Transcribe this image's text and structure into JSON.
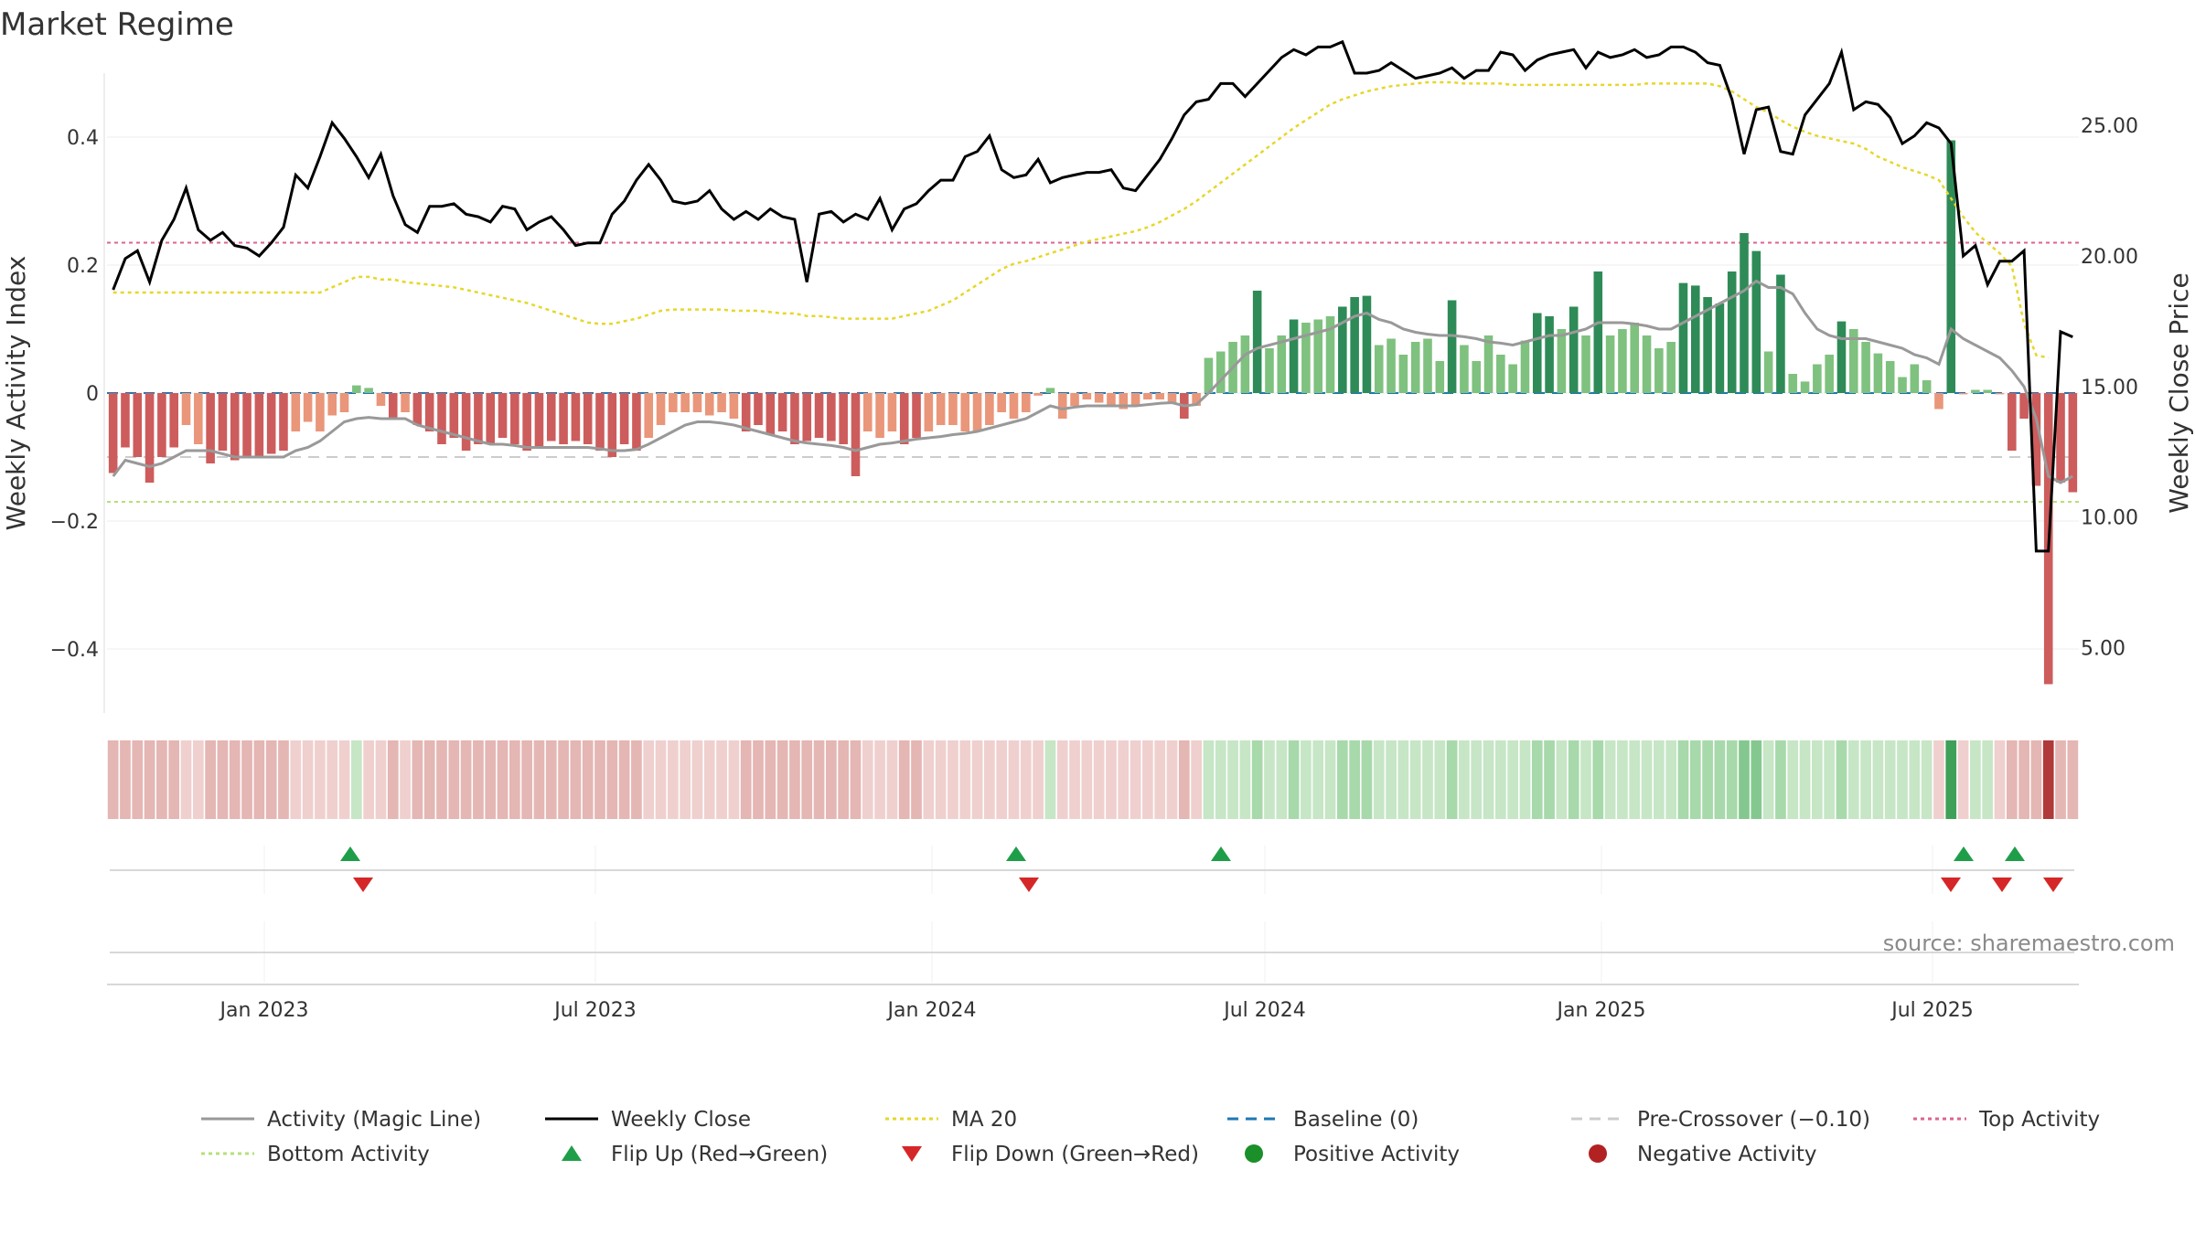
{
  "chart_data": {
    "type": "bar",
    "title": "Market Regime",
    "source": "source: sharemaestro.com",
    "x_range": [
      "2022-10-07",
      "2025-09-19"
    ],
    "x_ticks": [
      "Jan 2023",
      "Jul 2023",
      "Jan 2024",
      "Jul 2024",
      "Jan 2025",
      "Jul 2025"
    ],
    "x_tick_dates": [
      "2023-01-01",
      "2023-07-01",
      "2024-01-01",
      "2024-07-01",
      "2025-01-01",
      "2025-07-01"
    ],
    "y_left": {
      "label": "Weekly Activity Index",
      "range": [
        -0.5,
        0.5
      ],
      "ticks": [
        "0.4",
        "0.2",
        "0",
        "−0.2",
        "−0.4"
      ],
      "tick_values": [
        0.4,
        0.2,
        0,
        -0.2,
        -0.4
      ]
    },
    "y_right": {
      "label": "Weekly Close Price",
      "range": [
        2.5,
        27.0
      ],
      "ticks": [
        "25.00",
        "20.00",
        "15.00",
        "10.00",
        "5.00"
      ],
      "tick_values": [
        25,
        20,
        15,
        10,
        5
      ]
    },
    "reference_lines": {
      "baseline": 0,
      "pre_crossover": -0.1,
      "top_activity": 0.235,
      "bottom_activity": -0.17
    },
    "activity": [
      -0.125,
      -0.085,
      -0.1,
      -0.14,
      -0.1,
      -0.085,
      -0.05,
      -0.08,
      -0.11,
      -0.09,
      -0.105,
      -0.1,
      -0.1,
      -0.095,
      -0.09,
      -0.06,
      -0.045,
      -0.06,
      -0.035,
      -0.03,
      0.012,
      0.008,
      -0.02,
      -0.04,
      -0.03,
      -0.05,
      -0.06,
      -0.08,
      -0.07,
      -0.09,
      -0.08,
      -0.08,
      -0.07,
      -0.08,
      -0.09,
      -0.085,
      -0.075,
      -0.08,
      -0.075,
      -0.08,
      -0.09,
      -0.1,
      -0.08,
      -0.09,
      -0.07,
      -0.05,
      -0.03,
      -0.03,
      -0.03,
      -0.035,
      -0.03,
      -0.04,
      -0.06,
      -0.05,
      -0.065,
      -0.06,
      -0.08,
      -0.075,
      -0.07,
      -0.075,
      -0.08,
      -0.13,
      -0.06,
      -0.07,
      -0.06,
      -0.08,
      -0.07,
      -0.06,
      -0.05,
      -0.05,
      -0.06,
      -0.06,
      -0.05,
      -0.03,
      -0.04,
      -0.03,
      -0.004,
      0.008,
      -0.04,
      -0.02,
      -0.01,
      -0.015,
      -0.02,
      -0.025,
      -0.02,
      -0.01,
      -0.01,
      -0.015,
      -0.04,
      -0.02,
      0.055,
      0.065,
      0.08,
      0.09,
      0.16,
      0.07,
      0.09,
      0.115,
      0.11,
      0.115,
      0.12,
      0.135,
      0.15,
      0.152,
      0.075,
      0.085,
      0.06,
      0.08,
      0.085,
      0.05,
      0.145,
      0.075,
      0.05,
      0.09,
      0.06,
      0.045,
      0.082,
      0.125,
      0.12,
      0.1,
      0.135,
      0.09,
      0.19,
      0.09,
      0.1,
      0.11,
      0.09,
      0.07,
      0.08,
      0.172,
      0.168,
      0.15,
      0.14,
      0.19,
      0.25,
      0.222,
      0.065,
      0.185,
      0.03,
      0.018,
      0.045,
      0.06,
      0.112,
      0.1,
      0.08,
      0.062,
      0.05,
      0.025,
      0.045,
      0.02,
      -0.025,
      0.395,
      -0.002,
      0.005,
      0.005,
      -0.002,
      -0.09,
      -0.04,
      -0.145,
      -0.455,
      -0.14,
      -0.155
    ],
    "activity_magic_line": [
      -0.13,
      -0.105,
      -0.11,
      -0.115,
      -0.11,
      -0.1,
      -0.09,
      -0.09,
      -0.09,
      -0.095,
      -0.1,
      -0.1,
      -0.1,
      -0.1,
      -0.1,
      -0.09,
      -0.085,
      -0.075,
      -0.06,
      -0.045,
      -0.04,
      -0.038,
      -0.04,
      -0.04,
      -0.04,
      -0.05,
      -0.055,
      -0.06,
      -0.065,
      -0.07,
      -0.075,
      -0.08,
      -0.08,
      -0.082,
      -0.085,
      -0.085,
      -0.085,
      -0.085,
      -0.085,
      -0.085,
      -0.087,
      -0.09,
      -0.09,
      -0.088,
      -0.08,
      -0.07,
      -0.06,
      -0.05,
      -0.045,
      -0.045,
      -0.047,
      -0.05,
      -0.055,
      -0.06,
      -0.065,
      -0.07,
      -0.075,
      -0.078,
      -0.08,
      -0.082,
      -0.085,
      -0.09,
      -0.085,
      -0.08,
      -0.078,
      -0.075,
      -0.072,
      -0.07,
      -0.068,
      -0.065,
      -0.063,
      -0.06,
      -0.055,
      -0.05,
      -0.045,
      -0.04,
      -0.03,
      -0.02,
      -0.025,
      -0.022,
      -0.02,
      -0.02,
      -0.02,
      -0.02,
      -0.02,
      -0.018,
      -0.016,
      -0.015,
      -0.02,
      -0.018,
      0.0,
      0.02,
      0.04,
      0.06,
      0.07,
      0.075,
      0.08,
      0.085,
      0.09,
      0.095,
      0.1,
      0.11,
      0.12,
      0.125,
      0.115,
      0.11,
      0.1,
      0.095,
      0.092,
      0.09,
      0.09,
      0.088,
      0.085,
      0.08,
      0.078,
      0.075,
      0.08,
      0.085,
      0.09,
      0.09,
      0.095,
      0.1,
      0.11,
      0.11,
      0.11,
      0.108,
      0.105,
      0.1,
      0.1,
      0.11,
      0.12,
      0.13,
      0.14,
      0.15,
      0.16,
      0.175,
      0.165,
      0.165,
      0.155,
      0.125,
      0.1,
      0.09,
      0.085,
      0.085,
      0.085,
      0.08,
      0.075,
      0.07,
      0.06,
      0.055,
      0.045,
      0.1,
      0.085,
      0.075,
      0.065,
      0.055,
      0.035,
      0.01,
      -0.04,
      -0.13,
      -0.14,
      -0.13
    ],
    "weekly_close": [
      18.7,
      19.9,
      20.2,
      19.0,
      20.6,
      21.4,
      22.6,
      21.0,
      20.6,
      20.9,
      20.4,
      20.3,
      20.0,
      20.5,
      21.1,
      23.1,
      22.6,
      23.8,
      25.1,
      24.5,
      23.8,
      23.0,
      23.9,
      22.3,
      21.2,
      20.9,
      21.9,
      21.9,
      22.0,
      21.6,
      21.5,
      21.3,
      21.9,
      21.8,
      21.0,
      21.3,
      21.5,
      21.0,
      20.4,
      20.5,
      20.5,
      21.6,
      22.1,
      22.9,
      23.5,
      22.9,
      22.1,
      22.0,
      22.1,
      22.5,
      21.8,
      21.4,
      21.7,
      21.4,
      21.8,
      21.5,
      21.4,
      19.0,
      21.6,
      21.7,
      21.3,
      21.6,
      21.4,
      22.2,
      21.0,
      21.8,
      22.0,
      22.5,
      22.9,
      22.9,
      23.8,
      24.0,
      24.6,
      23.3,
      23.0,
      23.1,
      23.7,
      22.8,
      23.0,
      23.1,
      23.2,
      23.2,
      23.3,
      22.6,
      22.5,
      23.1,
      23.7,
      24.5,
      25.4,
      25.9,
      26.0,
      26.6,
      26.6,
      26.1,
      26.6,
      27.1,
      27.6,
      27.9,
      27.7,
      28.0,
      28.0,
      28.2,
      27.0,
      27.0,
      27.1,
      27.4,
      27.1,
      26.8,
      26.9,
      27.0,
      27.2,
      26.8,
      27.1,
      27.1,
      27.8,
      27.7,
      27.1,
      27.5,
      27.7,
      27.8,
      27.9,
      27.2,
      27.8,
      27.6,
      27.7,
      27.9,
      27.6,
      27.7,
      28.0,
      28.0,
      27.8,
      27.4,
      27.3,
      26.0,
      23.9,
      25.6,
      25.7,
      24.0,
      23.9,
      25.4,
      26.0,
      26.6,
      27.8,
      25.6,
      25.9,
      25.8,
      25.3,
      24.3,
      24.6,
      25.1,
      24.9,
      24.3,
      20.0,
      20.4,
      18.9,
      19.8,
      19.8,
      20.2,
      8.7,
      8.7,
      17.1,
      16.9
    ],
    "ma20": [
      18.6,
      18.6,
      18.6,
      18.6,
      18.6,
      18.6,
      18.6,
      18.6,
      18.6,
      18.6,
      18.6,
      18.6,
      18.6,
      18.6,
      18.6,
      18.6,
      18.6,
      18.6,
      18.8,
      19.0,
      19.2,
      19.2,
      19.1,
      19.1,
      19.0,
      18.95,
      18.9,
      18.85,
      18.8,
      18.7,
      18.6,
      18.5,
      18.4,
      18.3,
      18.2,
      18.05,
      17.9,
      17.75,
      17.6,
      17.45,
      17.4,
      17.4,
      17.5,
      17.6,
      17.75,
      17.9,
      17.95,
      17.95,
      17.95,
      17.95,
      17.95,
      17.9,
      17.9,
      17.9,
      17.85,
      17.8,
      17.8,
      17.7,
      17.7,
      17.65,
      17.6,
      17.6,
      17.6,
      17.6,
      17.6,
      17.7,
      17.8,
      17.9,
      18.1,
      18.3,
      18.6,
      18.9,
      19.2,
      19.5,
      19.7,
      19.8,
      19.95,
      20.1,
      20.25,
      20.4,
      20.55,
      20.65,
      20.75,
      20.85,
      20.95,
      21.1,
      21.3,
      21.55,
      21.8,
      22.1,
      22.45,
      22.8,
      23.15,
      23.5,
      23.85,
      24.2,
      24.55,
      24.9,
      25.2,
      25.5,
      25.8,
      26.0,
      26.15,
      26.3,
      26.4,
      26.5,
      26.55,
      26.6,
      26.65,
      26.65,
      26.65,
      26.6,
      26.6,
      26.6,
      26.6,
      26.55,
      26.55,
      26.55,
      26.55,
      26.55,
      26.55,
      26.55,
      26.55,
      26.55,
      26.55,
      26.55,
      26.6,
      26.6,
      26.6,
      26.6,
      26.6,
      26.6,
      26.5,
      26.3,
      26.0,
      25.7,
      25.5,
      25.2,
      24.95,
      24.75,
      24.6,
      24.5,
      24.4,
      24.3,
      24.1,
      23.8,
      23.6,
      23.4,
      23.25,
      23.1,
      22.9,
      22.2,
      21.5,
      20.9,
      20.5,
      20.1,
      19.6,
      17.4,
      16.2,
      16.1
    ],
    "regime": [
      -2,
      -2,
      -2,
      -2,
      -2,
      -2,
      -1,
      -1,
      -2,
      -2,
      -2,
      -2,
      -2,
      -2,
      -2,
      -1,
      -1,
      -1,
      -1,
      -1,
      1,
      -1,
      -1,
      -2,
      -1,
      -2,
      -2,
      -2,
      -2,
      -2,
      -2,
      -2,
      -2,
      -2,
      -2,
      -2,
      -2,
      -2,
      -2,
      -2,
      -2,
      -2,
      -2,
      -2,
      -1,
      -1,
      -1,
      -1,
      -1,
      -1,
      -1,
      -1,
      -2,
      -2,
      -2,
      -2,
      -2,
      -2,
      -2,
      -2,
      -2,
      -2,
      -1,
      -1,
      -1,
      -2,
      -2,
      -1,
      -1,
      -1,
      -1,
      -1,
      -1,
      -1,
      -1,
      -1,
      -1,
      1,
      -1,
      -1,
      -1,
      -1,
      -1,
      -1,
      -1,
      -1,
      -1,
      -1,
      -2,
      -1,
      1,
      1,
      1,
      1,
      2,
      1,
      1,
      2,
      1,
      1,
      1,
      2,
      2,
      2,
      1,
      1,
      1,
      1,
      1,
      1,
      2,
      1,
      1,
      1,
      1,
      1,
      1,
      2,
      2,
      1,
      2,
      1,
      2,
      1,
      1,
      1,
      1,
      1,
      1,
      2,
      2,
      2,
      2,
      2,
      3,
      3,
      1,
      2,
      1,
      1,
      1,
      1,
      2,
      1,
      1,
      1,
      1,
      1,
      1,
      1,
      -1,
      4,
      -1,
      1,
      1,
      -1,
      -2,
      -2,
      -2,
      -4,
      -2,
      -2
    ],
    "flip_up_dates": [
      "2023-02-17",
      "2024-02-16",
      "2024-06-07",
      "2025-07-18",
      "2025-08-15"
    ],
    "flip_down_dates": [
      "2023-02-24",
      "2024-02-23",
      "2025-07-11",
      "2025-08-08",
      "2025-09-05"
    ],
    "colors": {
      "pos_strong": "#2e8b57",
      "pos_light": "#7fc17f",
      "neg_strong": "#cd5c5c",
      "neg_light": "#e9967a",
      "magic_line": "#999999",
      "close": "#000000",
      "ma20": "#e6d72a",
      "baseline": "#1f77b4",
      "pre_crossover": "#cccccc",
      "top": "#dc6491",
      "bottom": "#b5e07a",
      "flip_up": "#1f9e4a",
      "flip_down": "#d62728",
      "dot_pos": "#1a8f2a",
      "dot_neg": "#b22222"
    },
    "legend": [
      {
        "label": "Activity (Magic Line)",
        "kind": "line",
        "color": "#999999",
        "dash": ""
      },
      {
        "label": "Weekly Close",
        "kind": "line",
        "color": "#000000",
        "dash": ""
      },
      {
        "label": "MA 20",
        "kind": "line",
        "color": "#e6d72a",
        "dash": "4,4"
      },
      {
        "label": "Baseline (0)",
        "kind": "line",
        "color": "#1f77b4",
        "dash": "12,8"
      },
      {
        "label": "Pre-Crossover (−0.10)",
        "kind": "line",
        "color": "#cccccc",
        "dash": "12,8"
      },
      {
        "label": "Top Activity",
        "kind": "line",
        "color": "#dc6491",
        "dash": "4,4"
      },
      {
        "label": "Bottom Activity",
        "kind": "line",
        "color": "#b5e07a",
        "dash": "4,4"
      },
      {
        "label": "Flip Up (Red→Green)",
        "kind": "tri-up",
        "color": "#1f9e4a",
        "dash": ""
      },
      {
        "label": "Flip Down (Green→Red)",
        "kind": "tri-down",
        "color": "#d62728",
        "dash": ""
      },
      {
        "label": "Positive Activity",
        "kind": "dot",
        "color": "#1a8f2a",
        "dash": ""
      },
      {
        "label": "Negative Activity",
        "kind": "dot",
        "color": "#b22222",
        "dash": ""
      }
    ]
  }
}
